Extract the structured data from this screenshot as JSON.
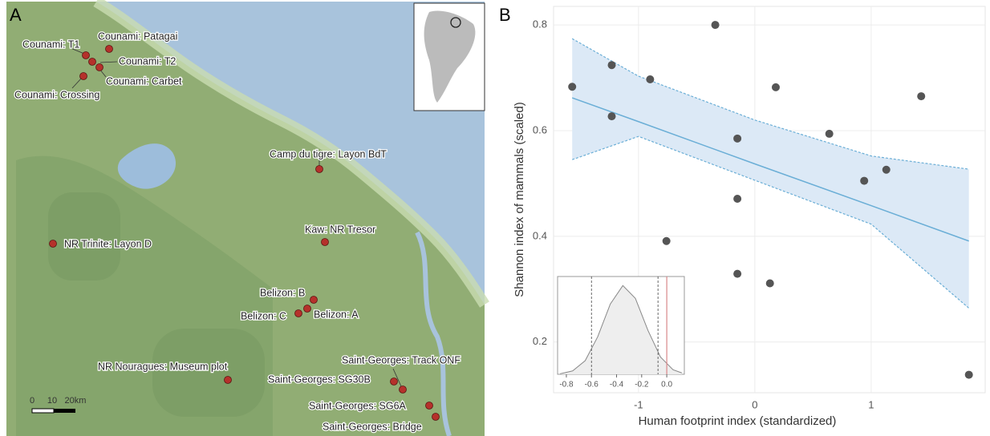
{
  "map": {
    "panel_label": "A",
    "sites": [
      "Counami: Patagai",
      "Counami: T1",
      "Counami: T2",
      "Counami: Carbet",
      "Counami: Crossing",
      "Camp du tigre: Layon BdT",
      "Kaw: NR Tresor",
      "NR Trinite: Layon D",
      "Belizon: B",
      "Belizon: A",
      "Belizon: C",
      "NR Nouragues: Museum plot",
      "Saint-Georges: Track ONF",
      "Saint-Georges: SG30B",
      "Saint-Georges: SG6A",
      "Saint-Georges: Bridge"
    ],
    "scale_labels": [
      "0",
      "10",
      "20km"
    ]
  },
  "chart_data": [
    {
      "type": "scatter",
      "panel_label": "B",
      "xlabel": "Human footprint index (standardized)",
      "ylabel": "Shannon index of mammals (scaled)",
      "x": [
        -1.57,
        -1.23,
        -1.23,
        -0.9,
        -0.34,
        -0.76,
        -0.15,
        -0.15,
        -0.15,
        0.18,
        0.13,
        0.64,
        0.94,
        1.13,
        1.43,
        1.84
      ],
      "values": [
        0.683,
        0.724,
        0.627,
        0.697,
        0.8,
        0.391,
        0.585,
        0.471,
        0.329,
        0.682,
        0.311,
        0.594,
        0.505,
        0.526,
        0.665,
        0.138
      ],
      "color": "#555555",
      "fit": {
        "x": [
          -1.57,
          -1,
          0,
          1,
          1.84
        ],
        "y": [
          0.662,
          0.617,
          0.537,
          0.458,
          0.391
        ],
        "upper": [
          0.774,
          0.703,
          0.62,
          0.552,
          0.527
        ],
        "lower": [
          0.545,
          0.589,
          0.506,
          0.423,
          0.264
        ],
        "color": "#6aaed6",
        "band_color": "#dce9f6"
      },
      "xlim": [
        -1.73,
        1.98
      ],
      "ylim": [
        0.104,
        0.835
      ],
      "xticks": [
        -1,
        0,
        1
      ],
      "yticks": [
        0.2,
        0.4,
        0.6,
        0.8
      ],
      "grid": true
    },
    {
      "type": "density",
      "x": [
        -0.85,
        -0.75,
        -0.65,
        -0.55,
        -0.45,
        -0.35,
        -0.25,
        -0.15,
        -0.05,
        0.05,
        0.12
      ],
      "values": [
        0.006,
        0.038,
        0.153,
        0.423,
        0.79,
        0.998,
        0.854,
        0.494,
        0.194,
        0.051,
        0.016
      ],
      "color": "#888888",
      "vlines": [
        -0.6,
        -0.07
      ],
      "reference": 0,
      "reference_color": "#d9878a",
      "xlim": [
        -0.87,
        0.14
      ],
      "ylim": [
        0,
        1.1
      ],
      "xticks": [
        -0.8,
        -0.6,
        -0.4,
        -0.2,
        {
          "value": 0,
          "label": "0.0"
        }
      ]
    }
  ]
}
